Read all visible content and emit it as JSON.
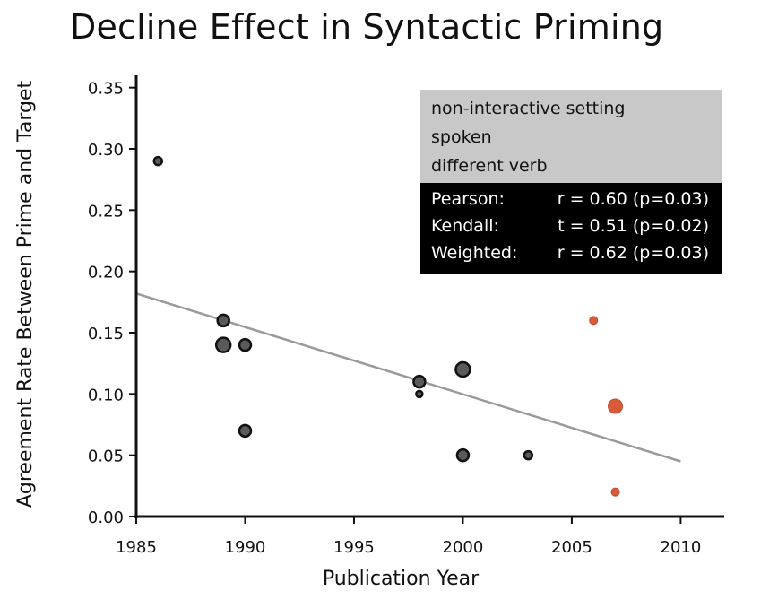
{
  "chart_data": {
    "type": "scatter",
    "title": "Decline Effect in Syntactic Priming",
    "xlabel": "Publication Year",
    "ylabel": "Agreement Rate Between Prime and Target",
    "xlim": [
      1985,
      2012
    ],
    "ylim": [
      0,
      0.36
    ],
    "x_ticks": [
      1985,
      1990,
      1995,
      2000,
      2005,
      2010
    ],
    "y_ticks": [
      0.0,
      0.05,
      0.1,
      0.15,
      0.2,
      0.25,
      0.3,
      0.35
    ],
    "y_tick_labels": [
      "0.00",
      "0.05",
      "0.10",
      "0.15",
      "0.20",
      "0.25",
      "0.30",
      "0.35"
    ],
    "colors": {
      "dark": "#2a2a2a",
      "highlight": "#d95a3a",
      "trend": "#9a9a9a"
    },
    "points": [
      {
        "x": 1986.0,
        "y": 0.29,
        "size": "small",
        "group": "dark"
      },
      {
        "x": 1989.0,
        "y": 0.16,
        "size": "medium",
        "group": "dark"
      },
      {
        "x": 1989.0,
        "y": 0.14,
        "size": "large",
        "group": "dark"
      },
      {
        "x": 1990.0,
        "y": 0.14,
        "size": "medium",
        "group": "dark"
      },
      {
        "x": 1990.0,
        "y": 0.07,
        "size": "medium",
        "group": "dark"
      },
      {
        "x": 1998.0,
        "y": 0.11,
        "size": "medium",
        "group": "dark"
      },
      {
        "x": 1998.0,
        "y": 0.1,
        "size": "tiny",
        "group": "dark"
      },
      {
        "x": 2000.0,
        "y": 0.12,
        "size": "large",
        "group": "dark"
      },
      {
        "x": 2000.0,
        "y": 0.05,
        "size": "medium",
        "group": "dark"
      },
      {
        "x": 2003.0,
        "y": 0.05,
        "size": "small",
        "group": "dark"
      },
      {
        "x": 2006.0,
        "y": 0.16,
        "size": "small",
        "group": "highlight"
      },
      {
        "x": 2007.0,
        "y": 0.09,
        "size": "large",
        "group": "highlight"
      },
      {
        "x": 2007.0,
        "y": 0.02,
        "size": "small",
        "group": "highlight"
      }
    ],
    "trendline": {
      "x": [
        1985,
        2010
      ],
      "y": [
        0.182,
        0.045
      ]
    },
    "legend": {
      "placement": "top-right",
      "conditions": [
        "non-interactive setting",
        "spoken",
        "different verb"
      ],
      "stats": [
        {
          "label": "Pearson:",
          "value": "r = 0.60 (p=0.03)"
        },
        {
          "label": "Kendall:",
          "value": "t = 0.51 (p=0.02)"
        },
        {
          "label": "Weighted:",
          "value": "r = 0.62 (p=0.03)"
        }
      ]
    }
  }
}
